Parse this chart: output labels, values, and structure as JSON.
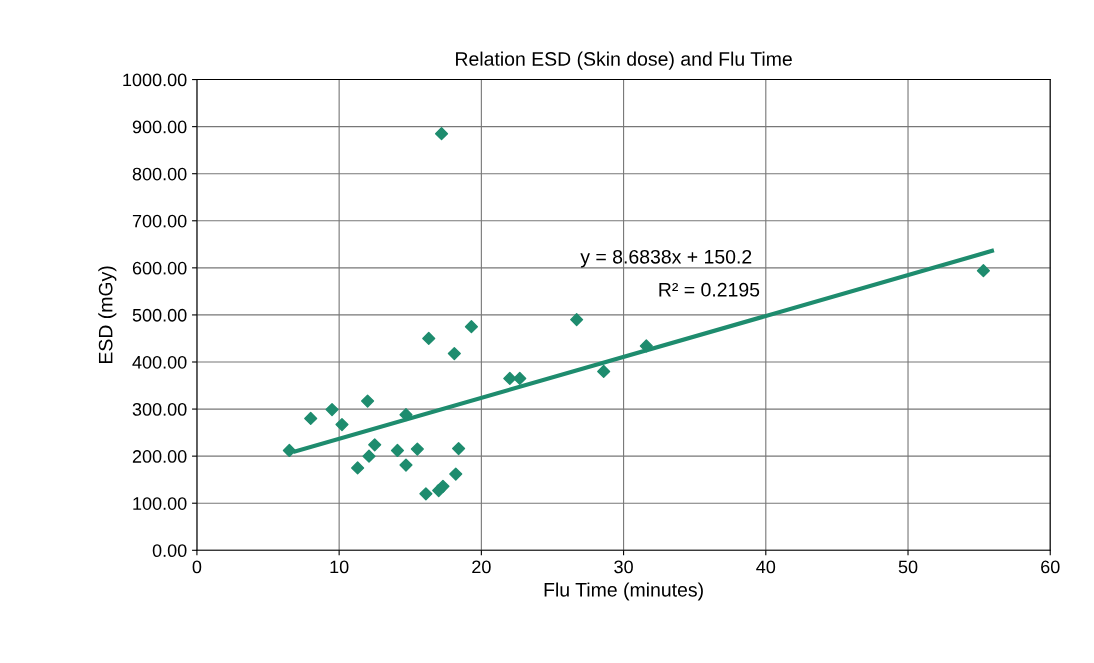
{
  "chart_data": {
    "type": "scatter",
    "title": "Relation ESD (Skin dose) and Flu Time",
    "xlabel": "Flu Time (minutes)",
    "ylabel": "ESD (mGy)",
    "series": [
      {
        "color": "#1e8c6e",
        "marker": "diamond",
        "x": [
          6.5,
          8.0,
          9.5,
          10.2,
          11.3,
          12.0,
          12.1,
          12.5,
          14.1,
          14.7,
          14.7,
          15.5,
          16.1,
          16.3,
          17.0,
          17.3,
          17.2,
          18.1,
          18.2,
          18.4,
          19.3,
          22.0,
          22.7,
          26.7,
          28.6,
          31.6,
          55.3
        ],
        "values": [
          212,
          280,
          299,
          267,
          175,
          317,
          200,
          224,
          212,
          288,
          181,
          215,
          120,
          450,
          127,
          136,
          885,
          418,
          162,
          216,
          475,
          365,
          365,
          490,
          380,
          434,
          594
        ]
      },
      {
        "type": "line",
        "color": "#1e8c6e",
        "x": [
          6.9,
          55.9
        ],
        "values": [
          210,
          636
        ]
      }
    ],
    "xlim": [
      0,
      60
    ],
    "xticks": [
      0,
      10,
      20,
      30,
      40,
      50,
      60
    ],
    "ylim": [
      0,
      1000
    ],
    "yticks": [
      {
        "value": 0,
        "label": "0.00"
      },
      {
        "value": 100,
        "label": "100.00"
      },
      {
        "value": 200,
        "label": "200.00"
      },
      {
        "value": 300,
        "label": "300.00"
      },
      {
        "value": 400,
        "label": "400.00"
      },
      {
        "value": 500,
        "label": "500.00"
      },
      {
        "value": 600,
        "label": "600.00"
      },
      {
        "value": 700,
        "label": "700.00"
      },
      {
        "value": 800,
        "label": "800.00"
      },
      {
        "value": 900,
        "label": "900.00"
      },
      {
        "value": 1000,
        "label": "1000.00"
      }
    ],
    "grid": true,
    "annotations": [
      "y = 8.6838x + 150.2",
      "R² = 0.2195"
    ]
  }
}
